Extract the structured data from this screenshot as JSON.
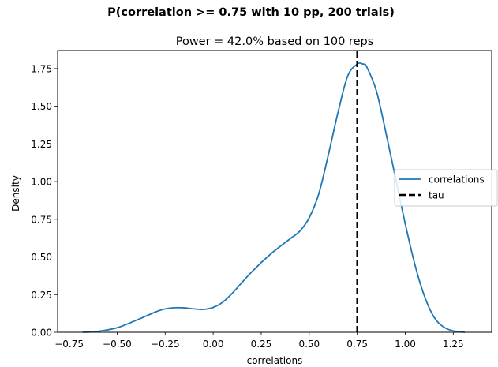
{
  "chart_data": {
    "type": "line",
    "suptitle": "P(correlation >= 0.75 with 10 pp, 200 trials)",
    "title": "Power = 42.0% based on 100 reps",
    "xlabel": "correlations",
    "ylabel": "Density",
    "xlim": [
      -0.81,
      1.45
    ],
    "ylim": [
      0.0,
      1.87
    ],
    "xticks": [
      -0.75,
      -0.5,
      -0.25,
      0.0,
      0.25,
      0.5,
      0.75,
      1.0,
      1.25
    ],
    "xtick_labels": [
      "−0.75",
      "−0.50",
      "−0.25",
      "0.00",
      "0.25",
      "0.50",
      "0.75",
      "1.00",
      "1.25"
    ],
    "yticks": [
      0.0,
      0.25,
      0.5,
      0.75,
      1.0,
      1.25,
      1.5,
      1.75
    ],
    "ytick_labels": [
      "0.00",
      "0.25",
      "0.50",
      "0.75",
      "1.00",
      "1.25",
      "1.50",
      "1.75"
    ],
    "grid": false,
    "legend_position": "center-right",
    "series": [
      {
        "name": "correlations",
        "color": "#1f77b4",
        "style": "solid",
        "x": [
          -0.68,
          -0.6,
          -0.5,
          -0.4,
          -0.3,
          -0.25,
          -0.2,
          -0.15,
          -0.1,
          -0.05,
          0.0,
          0.05,
          0.1,
          0.2,
          0.3,
          0.4,
          0.45,
          0.5,
          0.55,
          0.6,
          0.65,
          0.7,
          0.75,
          0.78,
          0.8,
          0.85,
          0.9,
          0.95,
          1.0,
          1.05,
          1.1,
          1.15,
          1.2,
          1.25,
          1.31
        ],
        "y": [
          0.0,
          0.006,
          0.03,
          0.08,
          0.135,
          0.155,
          0.163,
          0.162,
          0.155,
          0.152,
          0.165,
          0.2,
          0.26,
          0.4,
          0.52,
          0.62,
          0.67,
          0.76,
          0.92,
          1.18,
          1.46,
          1.7,
          1.78,
          1.78,
          1.76,
          1.6,
          1.32,
          1.02,
          0.72,
          0.45,
          0.24,
          0.1,
          0.035,
          0.009,
          0.0
        ]
      },
      {
        "name": "tau",
        "color": "#000000",
        "style": "dashed",
        "x": [
          0.75,
          0.75
        ],
        "y": [
          0.0,
          1.87
        ]
      }
    ]
  }
}
